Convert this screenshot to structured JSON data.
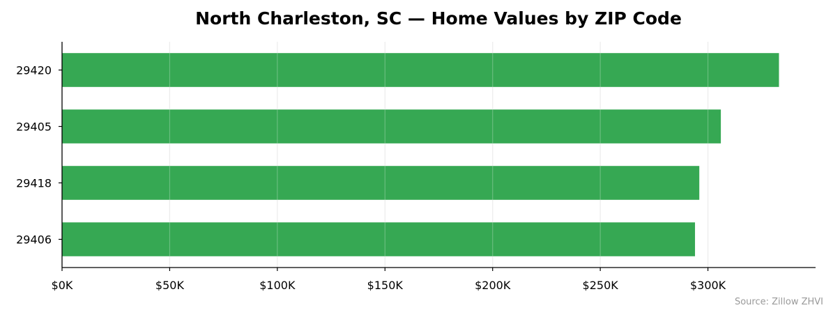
{
  "chart_data": {
    "type": "bar",
    "orientation": "horizontal",
    "title": "North Charleston, SC — Home Values by ZIP Code",
    "xlabel": "",
    "ylabel": "",
    "categories": [
      "29420",
      "29405",
      "29418",
      "29406"
    ],
    "values": [
      333000,
      306000,
      296000,
      294000
    ],
    "xlim": [
      0,
      350000
    ],
    "x_ticks": [
      0,
      50000,
      100000,
      150000,
      200000,
      250000,
      300000
    ],
    "x_tick_labels": [
      "$0K",
      "$50K",
      "$100K",
      "$150K",
      "$200K",
      "$250K",
      "$300K"
    ],
    "grid": "vertical",
    "legend": "none",
    "bar_color": "#36a853",
    "grid_color": "#e6e6e6",
    "axis_color": "#000000"
  },
  "source": "Source: Zillow ZHVI"
}
